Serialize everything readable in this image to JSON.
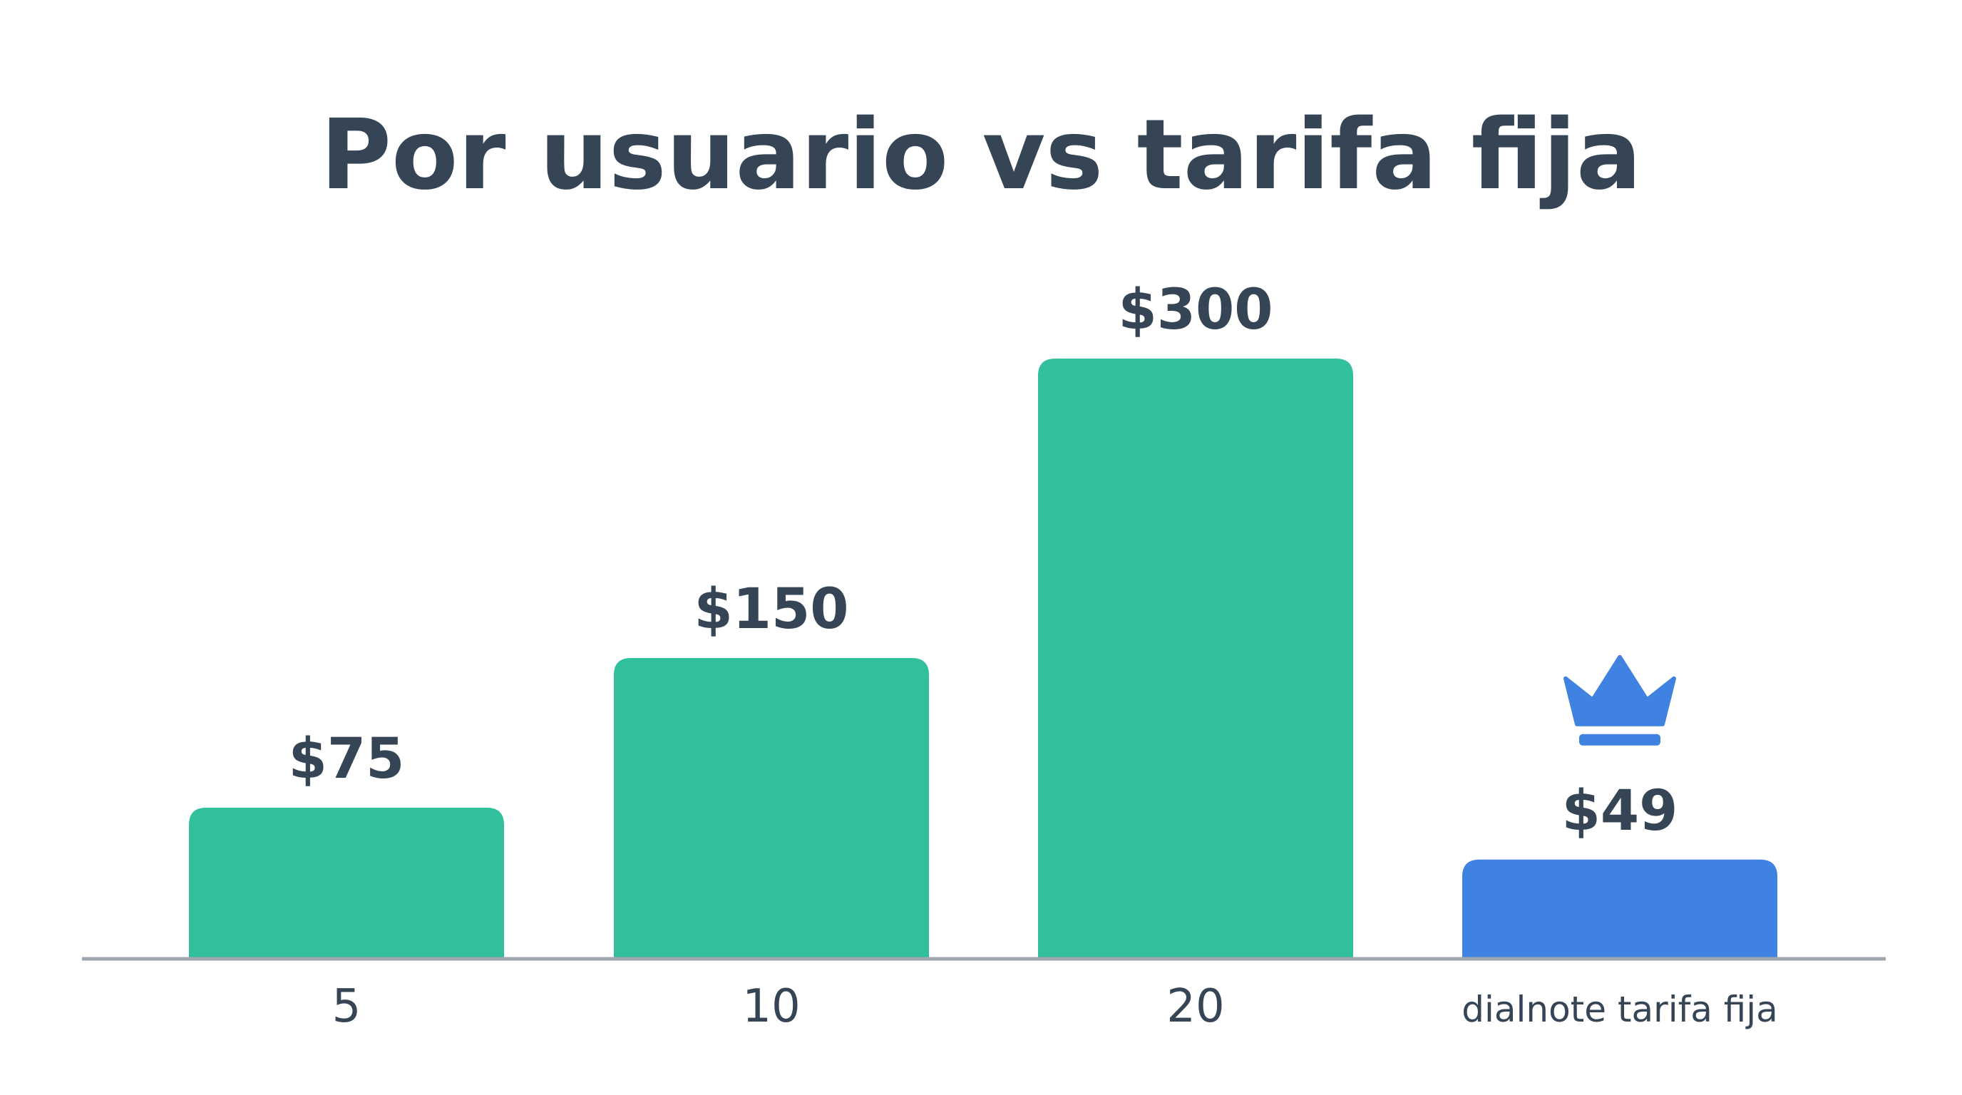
{
  "chart_data": {
    "type": "bar",
    "title": "Por usuario vs tarifa fija",
    "xlabel": "",
    "ylabel": "",
    "categories": [
      "5",
      "10",
      "20",
      "dialnote tarifa fija"
    ],
    "values": [
      75,
      150,
      300,
      49
    ],
    "value_labels": [
      "$75",
      "$150",
      "$300",
      "$49"
    ],
    "ylim": [
      0,
      300
    ],
    "grid": false,
    "legend": "none",
    "highlight_index": 3,
    "highlight_icon": "crown-icon",
    "colors": {
      "bar": "#31bf9e",
      "highlight_bar": "#3f82e2",
      "text": "#364556",
      "axis": "#a0a7b0"
    }
  }
}
